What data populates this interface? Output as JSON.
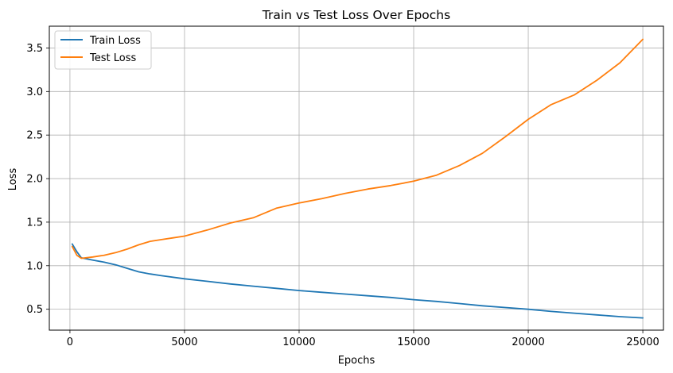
{
  "chart_data": {
    "type": "line",
    "title": "Train vs Test Loss Over Epochs",
    "xlabel": "Epochs",
    "ylabel": "Loss",
    "xlim": [
      -900,
      25900
    ],
    "ylim": [
      0.26,
      3.75
    ],
    "xticks": [
      0,
      5000,
      10000,
      15000,
      20000,
      25000
    ],
    "xtick_labels": [
      "0",
      "5000",
      "10000",
      "15000",
      "20000",
      "25000"
    ],
    "yticks": [
      0.5,
      1.0,
      1.5,
      2.0,
      2.5,
      3.0,
      3.5
    ],
    "ytick_labels": [
      "0.5",
      "1.0",
      "1.5",
      "2.0",
      "2.5",
      "3.0",
      "3.5"
    ],
    "grid": true,
    "legend_position": "top-left",
    "series": [
      {
        "name": "Train Loss",
        "color": "#1f77b4",
        "x": [
          100,
          300,
          500,
          1000,
          1500,
          2000,
          2500,
          3000,
          3500,
          4000,
          5000,
          6000,
          7000,
          8000,
          9000,
          10000,
          11000,
          12000,
          13000,
          14000,
          15000,
          16000,
          17000,
          18000,
          19000,
          20000,
          21000,
          22000,
          23000,
          24000,
          25000
        ],
        "y": [
          1.25,
          1.16,
          1.09,
          1.065,
          1.04,
          1.01,
          0.97,
          0.93,
          0.905,
          0.885,
          0.85,
          0.82,
          0.79,
          0.765,
          0.74,
          0.715,
          0.695,
          0.675,
          0.655,
          0.635,
          0.61,
          0.59,
          0.565,
          0.54,
          0.52,
          0.5,
          0.475,
          0.455,
          0.435,
          0.415,
          0.4
        ]
      },
      {
        "name": "Test Loss",
        "color": "#ff7f0e",
        "x": [
          100,
          300,
          500,
          1000,
          1500,
          2000,
          2500,
          3000,
          3500,
          4000,
          4500,
          5000,
          6000,
          7000,
          8000,
          9000,
          10000,
          11000,
          12000,
          13000,
          14000,
          15000,
          16000,
          17000,
          18000,
          19000,
          20000,
          21000,
          22000,
          23000,
          24000,
          25000
        ],
        "y": [
          1.22,
          1.12,
          1.085,
          1.1,
          1.12,
          1.15,
          1.19,
          1.24,
          1.28,
          1.3,
          1.32,
          1.34,
          1.41,
          1.49,
          1.55,
          1.66,
          1.72,
          1.77,
          1.83,
          1.88,
          1.92,
          1.97,
          2.04,
          2.15,
          2.29,
          2.48,
          2.68,
          2.85,
          2.96,
          3.13,
          3.33,
          3.6
        ]
      }
    ]
  }
}
